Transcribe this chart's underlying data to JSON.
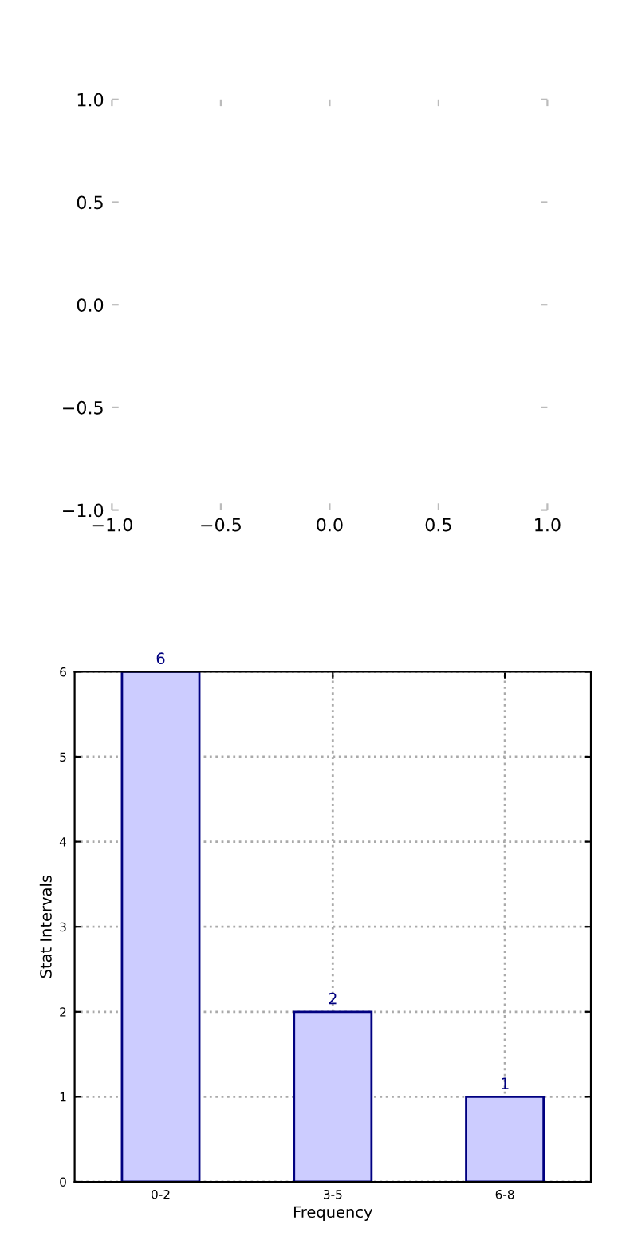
{
  "chart_data": [
    {
      "type": "scatter",
      "xlim": [
        -1.0,
        1.0
      ],
      "ylim": [
        -1.0,
        1.0
      ],
      "xticks": [
        {
          "value": -1.0,
          "label": "−1.0"
        },
        {
          "value": -0.5,
          "label": "−0.5"
        },
        {
          "value": 0.0,
          "label": "0.0"
        },
        {
          "value": 0.5,
          "label": "0.5"
        },
        {
          "value": 1.0,
          "label": "1.0"
        }
      ],
      "yticks": [
        {
          "value": -1.0,
          "label": "−1.0"
        },
        {
          "value": -0.5,
          "label": "−0.5"
        },
        {
          "value": 0.0,
          "label": "0.0"
        },
        {
          "value": 0.5,
          "label": "0.5"
        },
        {
          "value": 1.0,
          "label": "1.0"
        }
      ]
    },
    {
      "type": "bar",
      "categories": [
        "0-2",
        "3-5",
        "6-8"
      ],
      "values": [
        6,
        2,
        1
      ],
      "color": "#ccccff",
      "ylim": [
        0,
        6
      ],
      "yticks": [
        0,
        1,
        2,
        3,
        4,
        5,
        6
      ],
      "grid": true,
      "data_labels": true,
      "xlabel": "Frequency",
      "ylabel": "Stat Intervals"
    }
  ]
}
